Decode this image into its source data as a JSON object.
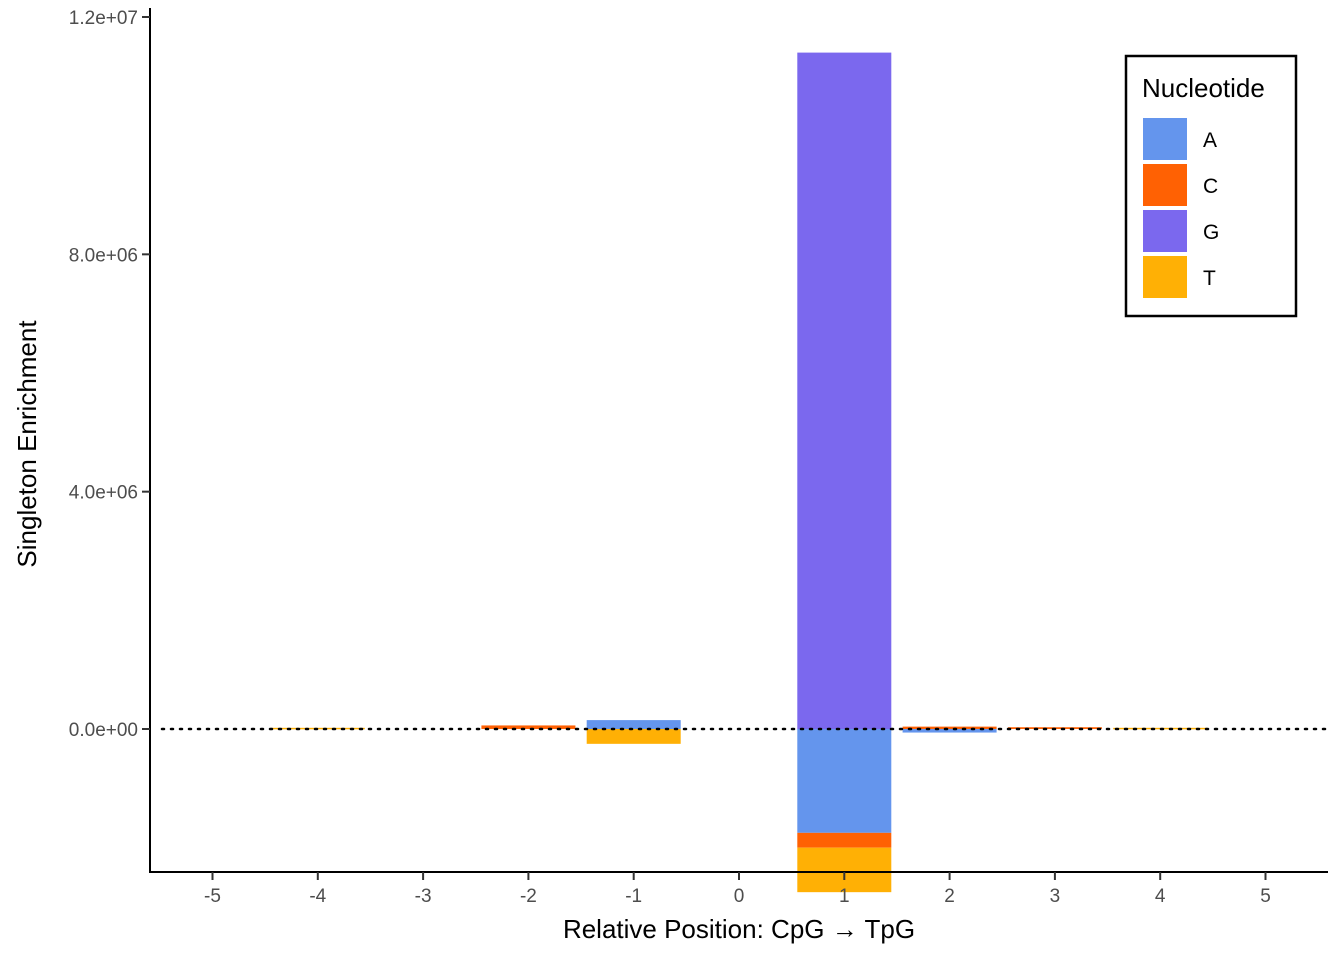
{
  "chart_data": {
    "type": "bar",
    "stacked": true,
    "title": "",
    "xlabel": "Relative Position: CpG → TpG",
    "ylabel": "Singleton Enrichment",
    "categories": [
      "-5",
      "-4",
      "-3",
      "-2",
      "-1",
      "0",
      "1",
      "2",
      "3",
      "4",
      "5"
    ],
    "x_values": [
      -5,
      -4,
      -3,
      -2,
      -1,
      0,
      1,
      2,
      3,
      4,
      5
    ],
    "xlim": [
      -5.55,
      5.55
    ],
    "ylim": [
      -2400000,
      12000000
    ],
    "yticks": [
      0,
      4000000,
      8000000,
      12000000
    ],
    "ytick_labels": [
      "0.0e+00",
      "4.0e+06",
      "8.0e+06",
      "1.2e+07"
    ],
    "grid": false,
    "reference_line": {
      "y": 0,
      "style": "dotted"
    },
    "legend": {
      "title": "Nucleotide",
      "position": "top-right",
      "entries": [
        {
          "label": "A",
          "color": "#6495ED"
        },
        {
          "label": "C",
          "color": "#FF6103"
        },
        {
          "label": "G",
          "color": "#7B68EE"
        },
        {
          "label": "T",
          "color": "#FFB005"
        }
      ]
    },
    "series": [
      {
        "name": "A",
        "color": "#6495ED",
        "values": [
          0,
          0,
          0,
          0,
          150000,
          0,
          -1750000,
          -60000,
          0,
          0,
          0
        ]
      },
      {
        "name": "C",
        "color": "#FF6103",
        "values": [
          0,
          0,
          0,
          60000,
          0,
          0,
          -250000,
          40000,
          30000,
          0,
          0
        ]
      },
      {
        "name": "G",
        "color": "#7B68EE",
        "values": [
          0,
          0,
          0,
          0,
          0,
          0,
          11400000,
          0,
          0,
          0,
          0
        ]
      },
      {
        "name": "T",
        "color": "#FFB005",
        "values": [
          0,
          20000,
          0,
          0,
          -250000,
          0,
          -750000,
          0,
          0,
          20000,
          0
        ]
      }
    ]
  }
}
